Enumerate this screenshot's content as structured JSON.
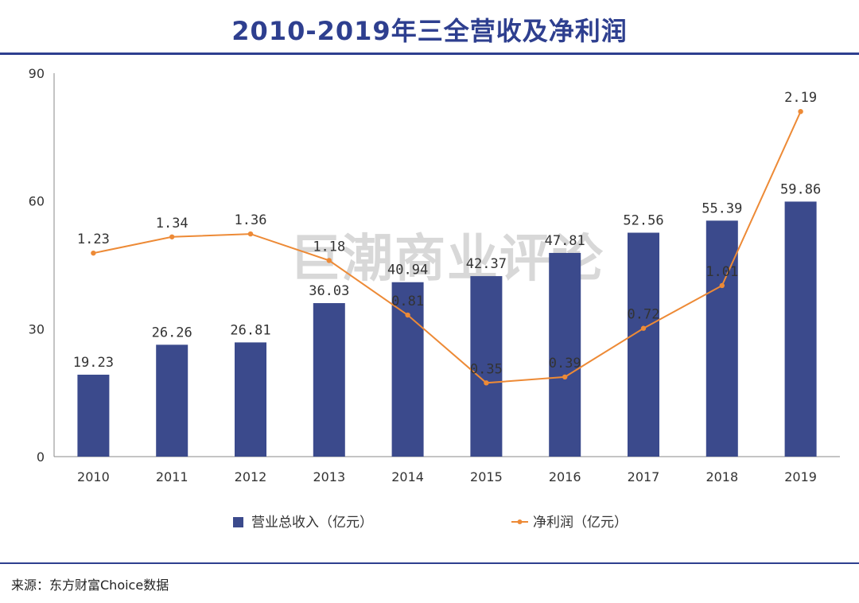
{
  "header": {
    "title": "2010-2019年三全营收及净利润"
  },
  "footer": {
    "source": "来源：东方财富Choice数据"
  },
  "watermark": "巨潮商业评论",
  "colors": {
    "bar": "#3b4a8c",
    "line": "#ed8a36",
    "accent": "#2e3f8f"
  },
  "chart_data": {
    "type": "bar+line",
    "categories": [
      "2010",
      "2011",
      "2012",
      "2013",
      "2014",
      "2015",
      "2016",
      "2017",
      "2018",
      "2019"
    ],
    "ylim": [
      0,
      90
    ],
    "yticks": [
      0,
      30,
      60,
      90
    ],
    "series": [
      {
        "name": "营业总收入（亿元）",
        "type": "bar",
        "values": [
          19.23,
          26.26,
          26.81,
          36.03,
          40.94,
          42.37,
          47.81,
          52.56,
          55.39,
          59.86
        ],
        "labels": [
          "19.23",
          "26.26",
          "26.81",
          "36.03",
          "40.94",
          "42.37",
          "47.81",
          "52.56",
          "55.39",
          "59.86"
        ]
      },
      {
        "name": "净利润（亿元）",
        "type": "line",
        "secondary_axis": true,
        "secondary_ylim": [
          -0.15,
          2.45
        ],
        "values": [
          1.23,
          1.34,
          1.36,
          1.18,
          0.81,
          0.35,
          0.39,
          0.72,
          1.01,
          2.19
        ],
        "labels": [
          "1.23",
          "1.34",
          "1.36",
          "1.18",
          "0.81",
          "0.35",
          "0.39",
          "0.72",
          "1.01",
          "2.19"
        ]
      }
    ]
  }
}
